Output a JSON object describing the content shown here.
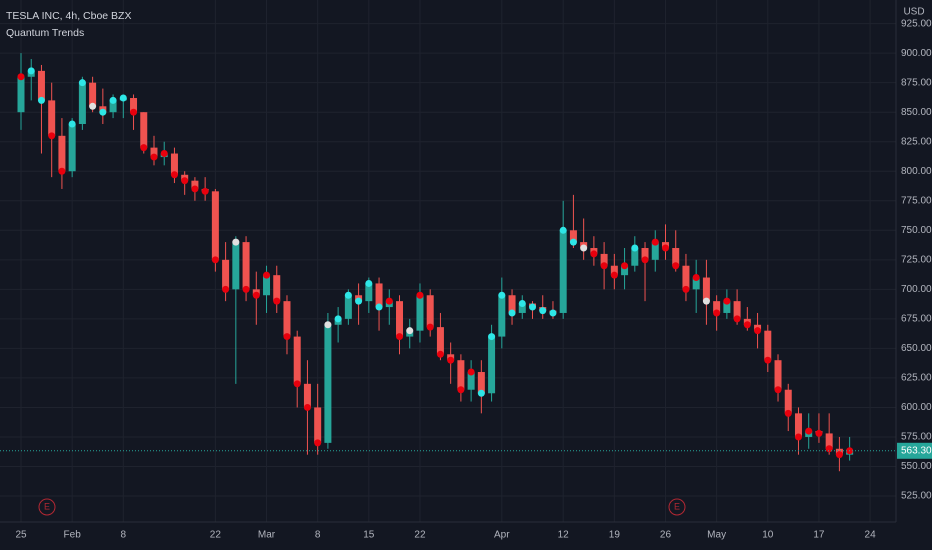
{
  "chart_data": {
    "type": "candlestick",
    "title": "TESLA INC, 4h, Cboe BZX",
    "subtitle": "Quantum Trends",
    "currency": "USD",
    "categories": [
      "25",
      null,
      null,
      null,
      null,
      "Feb",
      null,
      null,
      null,
      null,
      "8",
      null,
      null,
      null,
      null,
      null,
      null,
      null,
      null,
      "22",
      null,
      null,
      null,
      null,
      "Mar",
      null,
      null,
      null,
      null,
      "8",
      null,
      null,
      null,
      null,
      "15",
      null,
      null,
      null,
      null,
      "22",
      null,
      null,
      null,
      null,
      null,
      null,
      null,
      "Apr",
      null,
      null,
      null,
      null,
      null,
      "12",
      null,
      null,
      null,
      null,
      "19",
      null,
      null,
      null,
      null,
      "26",
      null,
      null,
      null,
      null,
      "May",
      null,
      null,
      null,
      null,
      "10",
      null,
      null,
      null,
      null,
      "17",
      null,
      null,
      null,
      null,
      "24"
    ],
    "open": [
      850,
      880,
      885,
      860,
      830,
      800,
      840,
      875,
      855,
      850,
      860,
      862,
      850,
      820,
      812,
      815,
      797,
      792,
      785,
      783,
      725,
      700,
      740,
      700,
      695,
      712,
      690,
      660,
      620,
      600,
      570,
      670,
      675,
      695,
      690,
      705,
      685,
      690,
      660,
      665,
      695,
      668,
      645,
      640,
      615,
      630,
      612,
      660,
      695,
      680,
      688,
      685,
      682,
      680,
      750,
      740,
      735,
      730,
      720,
      712,
      720,
      735,
      725,
      740,
      735,
      720,
      700,
      710,
      690,
      680,
      690,
      675,
      670,
      665,
      640,
      615,
      595,
      575,
      580,
      578,
      565,
      560,
      null,
      null
    ],
    "high": [
      900,
      895,
      890,
      875,
      845,
      845,
      880,
      880,
      870,
      865,
      865,
      865,
      850,
      830,
      825,
      820,
      800,
      795,
      795,
      785,
      740,
      745,
      745,
      715,
      720,
      720,
      695,
      665,
      640,
      620,
      680,
      685,
      700,
      705,
      710,
      710,
      700,
      695,
      675,
      705,
      700,
      680,
      655,
      645,
      640,
      640,
      670,
      710,
      700,
      695,
      690,
      695,
      690,
      775,
      780,
      760,
      745,
      740,
      730,
      735,
      745,
      740,
      750,
      755,
      750,
      730,
      725,
      725,
      695,
      700,
      700,
      685,
      680,
      670,
      645,
      620,
      600,
      595,
      595,
      595,
      575,
      575,
      null,
      null
    ],
    "low": [
      835,
      860,
      815,
      795,
      785,
      795,
      835,
      850,
      840,
      845,
      845,
      835,
      815,
      805,
      805,
      790,
      780,
      775,
      775,
      715,
      690,
      620,
      690,
      670,
      680,
      680,
      645,
      600,
      560,
      560,
      565,
      655,
      670,
      670,
      680,
      665,
      670,
      645,
      650,
      655,
      660,
      640,
      620,
      605,
      605,
      595,
      605,
      650,
      670,
      675,
      675,
      675,
      675,
      675,
      735,
      725,
      720,
      700,
      700,
      700,
      715,
      690,
      715,
      725,
      715,
      690,
      680,
      670,
      665,
      675,
      670,
      665,
      650,
      630,
      605,
      580,
      560,
      565,
      570,
      560,
      546,
      555,
      null,
      null
    ],
    "close": [
      880,
      885,
      860,
      830,
      800,
      840,
      875,
      855,
      850,
      860,
      862,
      850,
      820,
      812,
      815,
      797,
      792,
      785,
      783,
      725,
      700,
      740,
      700,
      695,
      712,
      690,
      660,
      620,
      600,
      570,
      670,
      675,
      695,
      690,
      705,
      685,
      690,
      660,
      665,
      695,
      668,
      645,
      640,
      615,
      630,
      612,
      660,
      695,
      680,
      688,
      685,
      682,
      680,
      750,
      740,
      735,
      730,
      720,
      712,
      720,
      735,
      725,
      740,
      735,
      720,
      700,
      710,
      690,
      680,
      690,
      675,
      670,
      665,
      640,
      615,
      595,
      575,
      580,
      578,
      565,
      560,
      563.3,
      null,
      null
    ],
    "up_color": "#26a69a",
    "down_color": "#ef5350",
    "dot_colors": [
      "#e8000d",
      "#2ee6e6",
      "#2ee6e6",
      "#e8000d",
      "#e8000d",
      "#2ee6e6",
      "#2ee6e6",
      "#e0e0e0",
      "#2ee6e6",
      "#2ee6e6",
      "#2ee6e6",
      "#e8000d",
      "#e8000d",
      "#e8000d",
      "#e8000d",
      "#e8000d",
      "#e8000d",
      "#e8000d",
      "#e8000d",
      "#e8000d",
      "#e8000d",
      "#e0e0e0",
      "#e8000d",
      "#e8000d",
      "#e8000d",
      "#e8000d",
      "#e8000d",
      "#e8000d",
      "#e8000d",
      "#e8000d",
      "#e0e0e0",
      "#2ee6e6",
      "#2ee6e6",
      "#2ee6e6",
      "#2ee6e6",
      "#2ee6e6",
      "#e8000d",
      "#e8000d",
      "#e0e0e0",
      "#e8000d",
      "#e8000d",
      "#e8000d",
      "#e8000d",
      "#e8000d",
      "#e8000d",
      "#2ee6e6",
      "#2ee6e6",
      "#2ee6e6",
      "#2ee6e6",
      "#2ee6e6",
      "#2ee6e6",
      "#2ee6e6",
      "#2ee6e6",
      "#2ee6e6",
      "#2ee6e6",
      "#e0e0e0",
      "#e8000d",
      "#e8000d",
      "#e8000d",
      "#e8000d",
      "#2ee6e6",
      "#e8000d",
      "#e8000d",
      "#e8000d",
      "#e8000d",
      "#e8000d",
      "#e8000d",
      "#e0e0e0",
      "#e8000d",
      "#e8000d",
      "#e8000d",
      "#e8000d",
      "#e8000d",
      "#e8000d",
      "#e8000d",
      "#e8000d",
      "#e8000d",
      "#e8000d",
      "#e8000d",
      "#e8000d",
      "#e8000d",
      "#e8000d",
      null,
      null
    ],
    "ylim": [
      503,
      945
    ],
    "yticks": [
      {
        "value": 525,
        "label": "525.00"
      },
      {
        "value": 550,
        "label": "550.00"
      },
      {
        "value": 575,
        "label": "575.00"
      },
      {
        "value": 600,
        "label": "600.00"
      },
      {
        "value": 625,
        "label": "625.00"
      },
      {
        "value": 650,
        "label": "650.00"
      },
      {
        "value": 675,
        "label": "675.00"
      },
      {
        "value": 700,
        "label": "700.00"
      },
      {
        "value": 725,
        "label": "725.00"
      },
      {
        "value": 750,
        "label": "750.00"
      },
      {
        "value": 775,
        "label": "775.00"
      },
      {
        "value": 800,
        "label": "800.00"
      },
      {
        "value": 825,
        "label": "825.00"
      },
      {
        "value": 850,
        "label": "850.00"
      },
      {
        "value": 875,
        "label": "875.00"
      },
      {
        "value": 900,
        "label": "900.00"
      },
      {
        "value": 925,
        "label": "925.00"
      }
    ],
    "last_price": {
      "value": 563.3,
      "label": "563.30"
    },
    "earnings_markers": [
      "E",
      "E"
    ],
    "grid": true
  }
}
